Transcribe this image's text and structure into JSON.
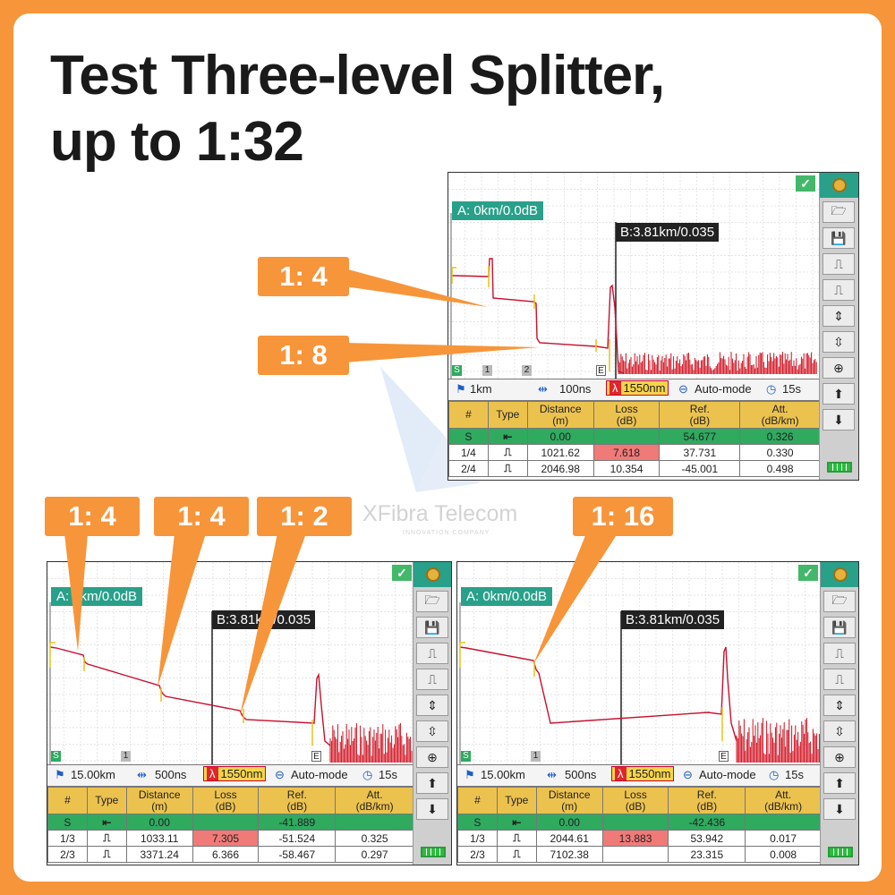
{
  "headline": {
    "line1": "Test Three-level Splitter,",
    "line2": "up to 1:32"
  },
  "watermark": {
    "brand": "XFibra Telecom",
    "sub": "INNOVATION COMPANY"
  },
  "callouts": {
    "top_1": "1: 4",
    "top_2": "1: 8",
    "bl_1": "1: 4",
    "bl_2": "1: 4",
    "bl_3": "1: 2",
    "br_1": "1: 16"
  },
  "colors": {
    "accent": "#f7953a",
    "teal": "#29a08a",
    "trace": "#c8102e",
    "header": "#ecc24f",
    "start_row": "#2faa5f",
    "loss_high": "#f07a78"
  },
  "screens": {
    "top": {
      "cursor_a": "A: 0km/0.0dB",
      "cursor_b": "B:3.81km/0.035",
      "markers": [
        "S",
        "1",
        "2",
        "E"
      ],
      "status": {
        "range": "1km",
        "pulse": "100ns",
        "wavelength_icon": "λ",
        "wavelength": "1550nm",
        "mode": "Auto-mode",
        "time": "15s"
      },
      "headers": [
        "#",
        "Type",
        "Distance\n(m)",
        "Loss\n(dB)",
        "Ref.\n(dB)",
        "Att.\n(dB/km)"
      ],
      "rows": [
        {
          "id": "S",
          "type": "start",
          "distance": "0.00",
          "loss": "",
          "ref": "54.677",
          "att": "0.326"
        },
        {
          "id": "1/4",
          "type": "splice",
          "distance": "1021.62",
          "loss": "7.618",
          "ref": "37.731",
          "att": "0.330"
        },
        {
          "id": "2/4",
          "type": "splice",
          "distance": "2046.98",
          "loss": "10.354",
          "ref": "-45.001",
          "att": "0.498"
        }
      ]
    },
    "bottom_left": {
      "cursor_a": "A: 0km/0.0dB",
      "cursor_b": "B:3.81km/0.035",
      "markers": [
        "S",
        "1",
        "E"
      ],
      "status": {
        "range": "15.00km",
        "pulse": "500ns",
        "wavelength_icon": "λ",
        "wavelength": "1550nm",
        "mode": "Auto-mode",
        "time": "15s"
      },
      "headers": [
        "#",
        "Type",
        "Distance\n(m)",
        "Loss\n(dB)",
        "Ref.\n(dB)",
        "Att.\n(dB/km)"
      ],
      "rows": [
        {
          "id": "S",
          "type": "start",
          "distance": "0.00",
          "loss": "",
          "ref": "-41.889",
          "att": ""
        },
        {
          "id": "1/3",
          "type": "splice",
          "distance": "1033.11",
          "loss": "7.305",
          "ref": "-51.524",
          "att": "0.325"
        },
        {
          "id": "2/3",
          "type": "splice",
          "distance": "3371.24",
          "loss": "6.366",
          "ref": "-58.467",
          "att": "0.297"
        }
      ]
    },
    "bottom_right": {
      "cursor_a": "A: 0km/0.0dB",
      "cursor_b": "B:3.81km/0.035",
      "markers": [
        "S",
        "1",
        "E"
      ],
      "status": {
        "range": "15.00km",
        "pulse": "500ns",
        "wavelength_icon": "λ",
        "wavelength": "1550nm",
        "mode": "Auto-mode",
        "time": "15s"
      },
      "headers": [
        "#",
        "Type",
        "Distance\n(m)",
        "Loss\n(dB)",
        "Ref.\n(dB)",
        "Att.\n(dB/km)"
      ],
      "rows": [
        {
          "id": "S",
          "type": "start",
          "distance": "0.00",
          "loss": "",
          "ref": "-42.436",
          "att": ""
        },
        {
          "id": "1/3",
          "type": "splice",
          "distance": "2044.61",
          "loss": "13.883",
          "ref": "53.942",
          "att": "0.017"
        },
        {
          "id": "2/3",
          "type": "splice",
          "distance": "7102.38",
          "loss": "",
          "ref": "23.315",
          "att": "0.008"
        }
      ]
    }
  },
  "sidebar_icons": [
    "gear-icon",
    "folder-open-icon",
    "save-icon",
    "pulse-left-icon",
    "pulse-right-icon",
    "vertical-expand-icon",
    "vertical-shrink-icon",
    "zoom-icon",
    "arrow-up-icon",
    "arrow-down-icon",
    "battery-icon"
  ]
}
